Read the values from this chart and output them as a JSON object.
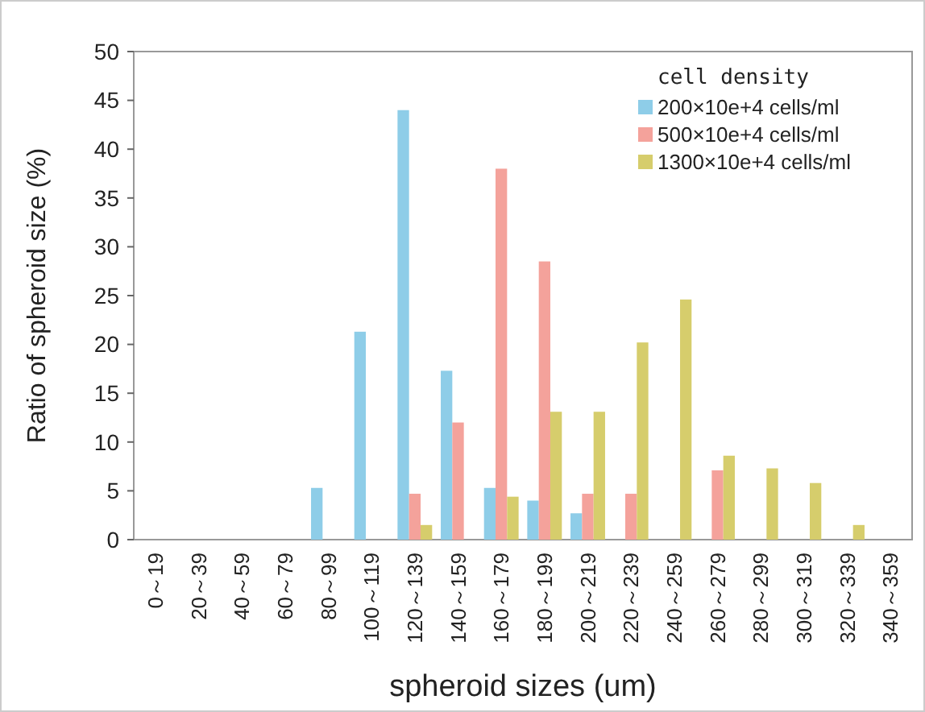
{
  "chart_data": {
    "type": "bar",
    "xlabel": "spheroid sizes (um)",
    "ylabel": "Ratio of spheroid size (%)",
    "legend_title": "cell density",
    "legend": "top right",
    "grid": false,
    "categories": [
      "0～19",
      "20～39",
      "40～59",
      "60～79",
      "80～99",
      "100～119",
      "120～139",
      "140～159",
      "160～179",
      "180～199",
      "200～219",
      "220～239",
      "240～259",
      "260～279",
      "280～299",
      "300～319",
      "320～339",
      "340～359"
    ],
    "ylim": [
      0,
      50
    ],
    "yticks": [
      0,
      5,
      10,
      15,
      20,
      25,
      30,
      35,
      40,
      45,
      50
    ],
    "series": [
      {
        "name": "200×10e+4 cells/ml",
        "color": "#8ecde8",
        "values": [
          0,
          0,
          0,
          0,
          5.3,
          21.3,
          44,
          17.3,
          5.3,
          4,
          2.7,
          0,
          0,
          0,
          0,
          0,
          0,
          0
        ]
      },
      {
        "name": "500×10e+4 cells/ml",
        "color": "#f4a29b",
        "values": [
          0,
          0,
          0,
          0,
          0,
          0,
          4.7,
          12,
          38,
          28.5,
          4.7,
          4.7,
          0,
          7.1,
          0,
          0,
          0,
          0
        ]
      },
      {
        "name": "1300×10e+4 cells/ml",
        "color": "#d6cd6c",
        "values": [
          0,
          0,
          0,
          0,
          0,
          0,
          1.5,
          0,
          4.4,
          13.1,
          13.1,
          20.2,
          24.6,
          8.6,
          7.3,
          5.8,
          1.5,
          0
        ]
      }
    ]
  }
}
